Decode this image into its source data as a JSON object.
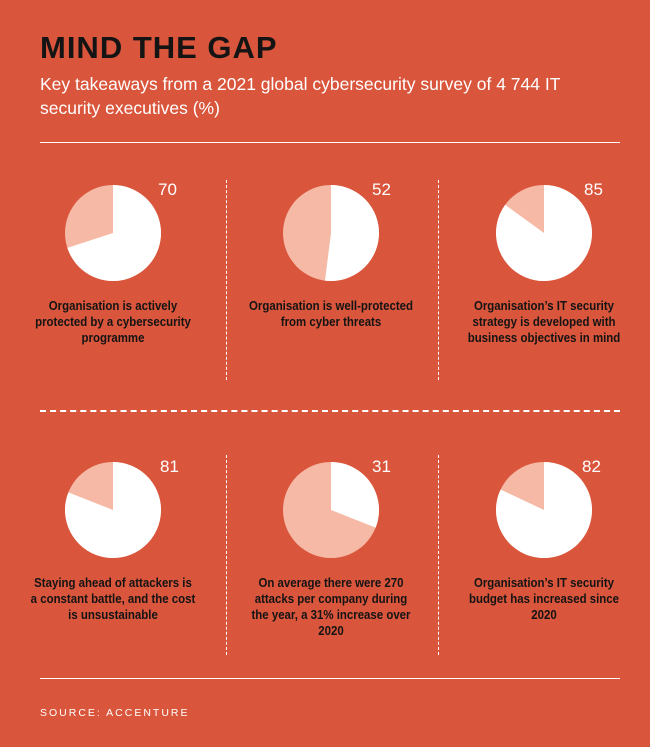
{
  "header": {
    "title": "MIND THE GAP",
    "subtitle": "Key takeaways from a 2021 global cybersecurity survey of 4 744 IT security executives (%)"
  },
  "colors": {
    "background": "#d9553b",
    "filled": "#ffffff",
    "remainder": "#f5b9a5",
    "text_dark": "#141414"
  },
  "chart_data": [
    {
      "type": "pie",
      "value": 70,
      "caption": "Organisation is actively protected by a cybersecurity programme"
    },
    {
      "type": "pie",
      "value": 52,
      "caption": "Organisation is well-protected from cyber threats"
    },
    {
      "type": "pie",
      "value": 85,
      "caption": "Organisation’s IT security strategy is developed with business objectives in mind"
    },
    {
      "type": "pie",
      "value": 81,
      "caption": "Staying ahead of attackers is a constant battle, and the cost is unsustainable"
    },
    {
      "type": "pie",
      "value": 31,
      "caption": "On average there were 270 attacks per company during the year, a 31% increase over 2020"
    },
    {
      "type": "pie",
      "value": 82,
      "caption": "Organisation’s IT security budget has increased since 2020"
    }
  ],
  "footer": {
    "source": "SOURCE: ACCENTURE"
  }
}
